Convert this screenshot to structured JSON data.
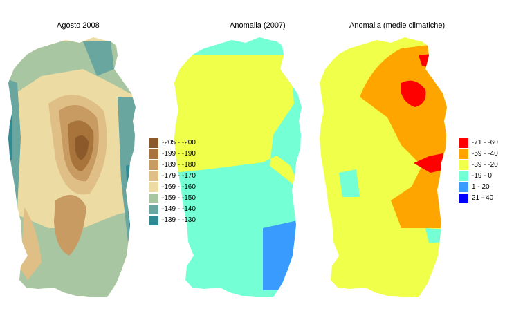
{
  "maps": [
    {
      "title": "Agosto 2008",
      "legend": [
        {
          "label": "-205 - -200",
          "color": "#8c5a2a"
        },
        {
          "label": "-199 - -190",
          "color": "#a8743c"
        },
        {
          "label": "-189 - -180",
          "color": "#c89b63"
        },
        {
          "label": "-179 - -170",
          "color": "#e0bf86"
        },
        {
          "label": "-169 - -160",
          "color": "#ecdca3"
        },
        {
          "label": "-159 - -150",
          "color": "#a9c6a2"
        },
        {
          "label": "-149 - -140",
          "color": "#6aa6a0"
        },
        {
          "label": "-139 - -130",
          "color": "#2f8a94"
        }
      ]
    },
    {
      "title": "Anomalia (2007)"
    },
    {
      "title": "Anomalia (medie climatiche)",
      "legend": [
        {
          "label": "-71 - -60",
          "color": "#ff0000"
        },
        {
          "label": "-59 - -40",
          "color": "#ffa500"
        },
        {
          "label": "-39 - -20",
          "color": "#f0ff4a"
        },
        {
          "label": "-19 - 0",
          "color": "#74ffd4"
        },
        {
          "label": "1 - 20",
          "color": "#3a9bff"
        },
        {
          "label": "21 - 40",
          "color": "#0000ff"
        }
      ]
    }
  ]
}
